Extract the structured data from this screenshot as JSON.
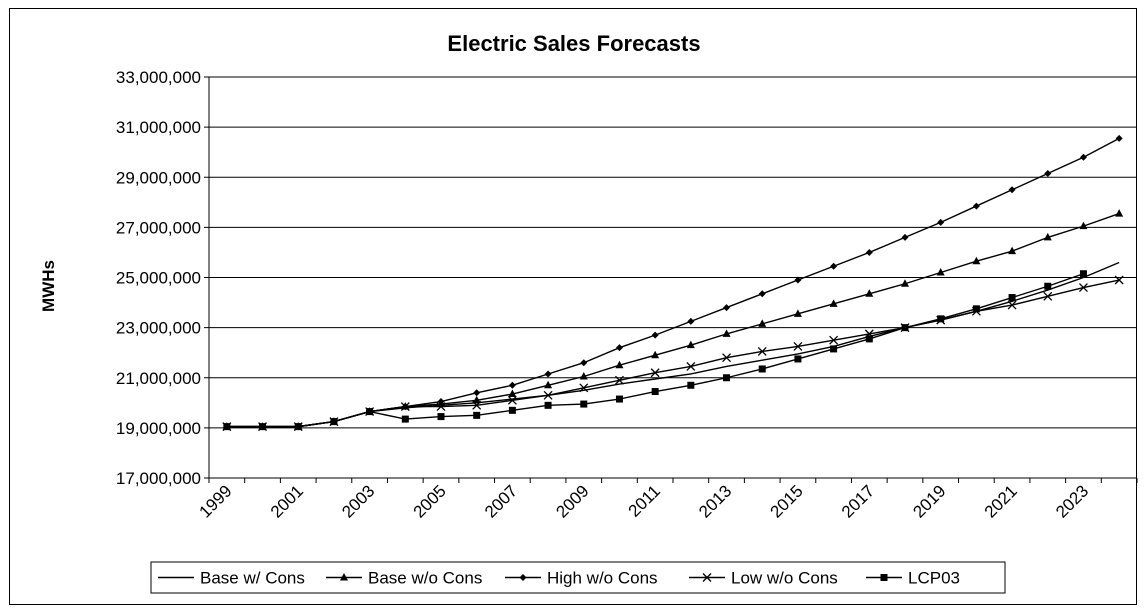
{
  "chart_data": {
    "type": "line",
    "title": "Electric Sales Forecasts",
    "xlabel": "",
    "ylabel": "MWHs",
    "ylim": [
      17000000,
      33000000
    ],
    "yticks": [
      "17,000,000",
      "19,000,000",
      "21,000,000",
      "23,000,000",
      "25,000,000",
      "27,000,000",
      "29,000,000",
      "31,000,000",
      "33,000,000"
    ],
    "x": [
      1999,
      2000,
      2001,
      2002,
      2003,
      2004,
      2005,
      2006,
      2007,
      2008,
      2009,
      2010,
      2011,
      2012,
      2013,
      2014,
      2015,
      2016,
      2017,
      2018,
      2019,
      2020,
      2021,
      2022,
      2023,
      2024
    ],
    "xticks": [
      "1999",
      "2001",
      "2003",
      "2005",
      "2007",
      "2009",
      "2011",
      "2013",
      "2015",
      "2017",
      "2019",
      "2021",
      "2023"
    ],
    "legend_position": "bottom",
    "grid": "horizontal",
    "series": [
      {
        "name": "Base w/ Cons",
        "marker": "none",
        "values": [
          19050000,
          19050000,
          19050000,
          19250000,
          19650000,
          19800000,
          19900000,
          20000000,
          20150000,
          20300000,
          20500000,
          20750000,
          20950000,
          21150000,
          21450000,
          21700000,
          21950000,
          22250000,
          22650000,
          23000000,
          23300000,
          23650000,
          24050000,
          24500000,
          25000000,
          25600000
        ]
      },
      {
        "name": "Base w/o Cons",
        "marker": "triangle",
        "values": [
          19050000,
          19050000,
          19050000,
          19250000,
          19650000,
          19850000,
          19950000,
          20100000,
          20350000,
          20700000,
          21050000,
          21500000,
          21900000,
          22300000,
          22750000,
          23150000,
          23550000,
          23950000,
          24350000,
          24750000,
          25200000,
          25650000,
          26050000,
          26600000,
          27050000,
          27550000
        ]
      },
      {
        "name": "High w/o Cons",
        "marker": "diamond",
        "values": [
          19050000,
          19050000,
          19050000,
          19250000,
          19650000,
          19850000,
          20050000,
          20400000,
          20700000,
          21150000,
          21600000,
          22200000,
          22700000,
          23250000,
          23800000,
          24350000,
          24900000,
          25450000,
          26000000,
          26600000,
          27200000,
          27850000,
          28500000,
          29150000,
          29800000,
          30550000
        ]
      },
      {
        "name": "Low w/o Cons",
        "marker": "x",
        "values": [
          19050000,
          19050000,
          19050000,
          19250000,
          19650000,
          19850000,
          19850000,
          19900000,
          20100000,
          20300000,
          20600000,
          20900000,
          21200000,
          21450000,
          21800000,
          22050000,
          22250000,
          22500000,
          22750000,
          23000000,
          23300000,
          23650000,
          23900000,
          24250000,
          24600000,
          24900000
        ]
      },
      {
        "name": "LCP03",
        "marker": "square",
        "values": [
          19050000,
          19050000,
          19050000,
          19250000,
          19650000,
          19350000,
          19450000,
          19500000,
          19700000,
          19900000,
          19950000,
          20150000,
          20450000,
          20700000,
          21000000,
          21350000,
          21750000,
          22150000,
          22550000,
          23000000,
          23350000,
          23750000,
          24200000,
          24650000,
          25150000,
          null
        ]
      }
    ]
  }
}
